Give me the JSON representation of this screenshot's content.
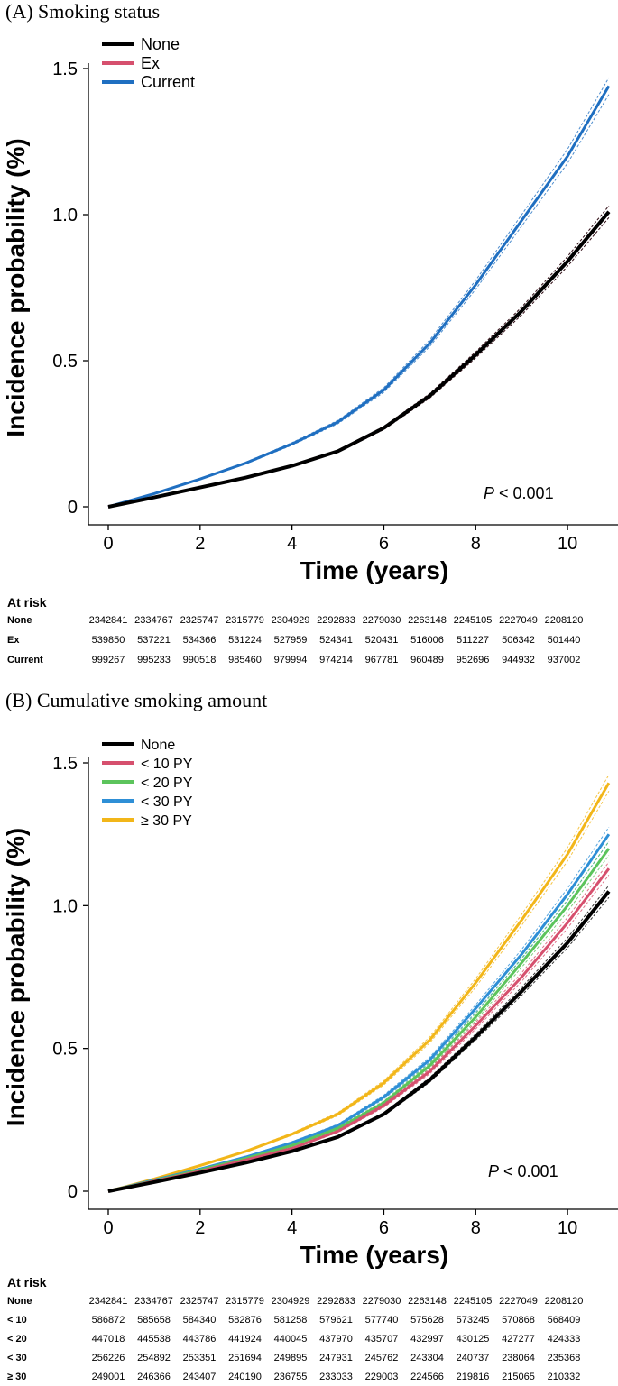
{
  "chart_data": [
    {
      "type": "line",
      "title": "(A) Smoking status",
      "xlabel": "Time (years)",
      "ylabel": "Incidence probability (%)",
      "xlim": [
        0,
        11
      ],
      "ylim": [
        0,
        1.5
      ],
      "xticks": [
        "0",
        "2",
        "4",
        "6",
        "8",
        "10"
      ],
      "yticks": [
        "0",
        "0.5",
        "1.0",
        "1.5"
      ],
      "legend_position": "top-left",
      "annotation": "P < 0.001",
      "annotation_italic": "P",
      "annotation_rest": " < 0.001",
      "x": [
        0,
        1,
        2,
        3,
        4,
        5,
        6,
        7,
        8,
        9,
        10,
        10.9
      ],
      "series": [
        {
          "name": "None",
          "color": "#000000",
          "values": [
            0,
            0.032,
            0.066,
            0.1,
            0.14,
            0.19,
            0.27,
            0.38,
            0.52,
            0.67,
            0.84,
            1.01
          ]
        },
        {
          "name": "Ex",
          "color": "#d6506e",
          "values": [
            0,
            0.032,
            0.066,
            0.1,
            0.14,
            0.19,
            0.27,
            0.38,
            0.52,
            0.67,
            0.84,
            1.01
          ]
        },
        {
          "name": "Current",
          "color": "#1f6fc1",
          "values": [
            0,
            0.045,
            0.095,
            0.15,
            0.215,
            0.29,
            0.4,
            0.56,
            0.76,
            0.98,
            1.2,
            1.44
          ]
        }
      ],
      "at_risk": {
        "title": "At risk",
        "rows": [
          {
            "label": "None",
            "values": [
              "2342841",
              "2334767",
              "2325747",
              "2315779",
              "2304929",
              "2292833",
              "2279030",
              "2263148",
              "2245105",
              "2227049",
              "2208120"
            ]
          },
          {
            "label": "Ex",
            "values": [
              "539850",
              "537221",
              "534366",
              "531224",
              "527959",
              "524341",
              "520431",
              "516006",
              "511227",
              "506342",
              "501440"
            ]
          },
          {
            "label": "Current",
            "values": [
              "999267",
              "995233",
              "990518",
              "985460",
              "979994",
              "974214",
              "967781",
              "960489",
              "952696",
              "944932",
              "937002"
            ]
          }
        ]
      }
    },
    {
      "type": "line",
      "title": "(B) Cumulative smoking amount",
      "xlabel": "Time (years)",
      "ylabel": "Incidence probability (%)",
      "xlim": [
        0,
        11
      ],
      "ylim": [
        0,
        1.5
      ],
      "xticks": [
        "0",
        "2",
        "4",
        "6",
        "8",
        "10"
      ],
      "yticks": [
        "0",
        "0.5",
        "1.0",
        "1.5"
      ],
      "legend_position": "top-left",
      "annotation": "P < 0.001",
      "annotation_italic": "P",
      "annotation_rest": " < 0.001",
      "x": [
        0,
        1,
        2,
        3,
        4,
        5,
        6,
        7,
        8,
        9,
        10,
        10.9
      ],
      "series": [
        {
          "name": "None",
          "color": "#000000",
          "values": [
            0,
            0.032,
            0.065,
            0.1,
            0.14,
            0.19,
            0.27,
            0.39,
            0.54,
            0.7,
            0.87,
            1.05
          ]
        },
        {
          "name": "< 10 PY",
          "color": "#d6506e",
          "values": [
            0,
            0.035,
            0.07,
            0.11,
            0.15,
            0.21,
            0.3,
            0.42,
            0.58,
            0.75,
            0.94,
            1.13
          ]
        },
        {
          "name": "< 20 PY",
          "color": "#5cc45c",
          "values": [
            0,
            0.037,
            0.075,
            0.115,
            0.16,
            0.22,
            0.31,
            0.44,
            0.61,
            0.8,
            1.0,
            1.2
          ]
        },
        {
          "name": "< 30 PY",
          "color": "#2e8fd6",
          "values": [
            0,
            0.039,
            0.078,
            0.12,
            0.17,
            0.23,
            0.33,
            0.46,
            0.64,
            0.83,
            1.04,
            1.25
          ]
        },
        {
          "name": "≥ 30 PY",
          "color": "#f2b619",
          "values": [
            0,
            0.043,
            0.09,
            0.14,
            0.2,
            0.27,
            0.38,
            0.53,
            0.73,
            0.95,
            1.18,
            1.43
          ]
        }
      ],
      "at_risk": {
        "title": "At risk",
        "rows": [
          {
            "label": "None",
            "values": [
              "2342841",
              "2334767",
              "2325747",
              "2315779",
              "2304929",
              "2292833",
              "2279030",
              "2263148",
              "2245105",
              "2227049",
              "2208120"
            ]
          },
          {
            "label": "< 10",
            "values": [
              "586872",
              "585658",
              "584340",
              "582876",
              "581258",
              "579621",
              "577740",
              "575628",
              "573245",
              "570868",
              "568409"
            ]
          },
          {
            "label": "< 20",
            "values": [
              "447018",
              "445538",
              "443786",
              "441924",
              "440045",
              "437970",
              "435707",
              "432997",
              "430125",
              "427277",
              "424333"
            ]
          },
          {
            "label": "< 30",
            "values": [
              "256226",
              "254892",
              "253351",
              "251694",
              "249895",
              "247931",
              "245762",
              "243304",
              "240737",
              "238064",
              "235368"
            ]
          },
          {
            "label": "≥ 30",
            "values": [
              "249001",
              "246366",
              "243407",
              "240190",
              "236755",
              "233033",
              "229003",
              "224566",
              "219816",
              "215065",
              "210332"
            ]
          }
        ]
      }
    }
  ]
}
